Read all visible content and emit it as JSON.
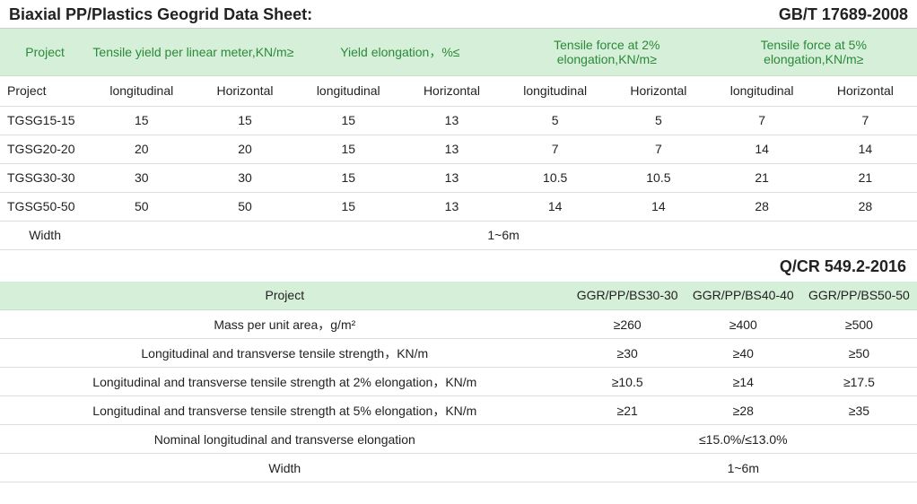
{
  "colors": {
    "header_bg": "#d6efd8",
    "header_text": "#2a8a3a",
    "border": "#dddddd",
    "text": "#222222"
  },
  "title": "Biaxial PP/Plastics Geogrid Data Sheet:",
  "standard1": "GB/T 17689-2008",
  "standard2": "Q/CR 549.2-2016",
  "table1": {
    "green_headers": {
      "c0": "Project",
      "g1": "Tensile yield per linear meter,KN/m≥",
      "g2": "Yield elongation，%≤",
      "g3": "Tensile force at 2% elongation,KN/m≥",
      "g4": "Tensile force at 5% elongation,KN/m≥"
    },
    "sub_headers": [
      "Project",
      "longitudinal",
      "Horizontal",
      "longitudinal",
      "Horizontal",
      "longitudinal",
      "Horizontal",
      "longitudinal",
      "Horizontal"
    ],
    "rows": [
      [
        "TGSG15-15",
        "15",
        "15",
        "15",
        "13",
        "5",
        "5",
        "7",
        "7"
      ],
      [
        "TGSG20-20",
        "20",
        "20",
        "15",
        "13",
        "7",
        "7",
        "14",
        "14"
      ],
      [
        "TGSG30-30",
        "30",
        "30",
        "15",
        "13",
        "10.5",
        "10.5",
        "21",
        "21"
      ],
      [
        "TGSG50-50",
        "50",
        "50",
        "15",
        "13",
        "14",
        "14",
        "28",
        "28"
      ]
    ],
    "width_row": {
      "label": "Width",
      "value": "1~6m"
    }
  },
  "table2": {
    "headers": [
      "Project",
      "GGR/PP/BS30-30",
      "GGR/PP/BS40-40",
      "GGR/PP/BS50-50"
    ],
    "rows": [
      {
        "label": "Mass per unit area，g/m²",
        "v": [
          "≥260",
          "≥400",
          "≥500"
        ]
      },
      {
        "label": "Longitudinal and transverse tensile strength，KN/m",
        "v": [
          "≥30",
          "≥40",
          "≥50"
        ]
      },
      {
        "label": "Longitudinal and transverse tensile strength at 2% elongation，KN/m",
        "v": [
          "≥10.5",
          "≥14",
          "≥17.5"
        ]
      },
      {
        "label": "Longitudinal and transverse tensile strength at 5% elongation，KN/m",
        "v": [
          "≥21",
          "≥28",
          "≥35"
        ]
      }
    ],
    "elong_row": {
      "label": "Nominal longitudinal and transverse elongation",
      "value": "≤15.0%/≤13.0%"
    },
    "width_row": {
      "label": "Width",
      "value": "1~6m"
    }
  }
}
